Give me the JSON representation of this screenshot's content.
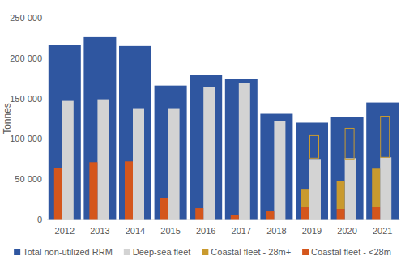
{
  "chart_data": {
    "type": "bar",
    "y_label": "Tonnes",
    "categories": [
      "2012",
      "2013",
      "2014",
      "2015",
      "2016",
      "2017",
      "2018",
      "2019",
      "2020",
      "2021"
    ],
    "series": [
      {
        "name": "Total non-utilized RRM",
        "color": "#2f56a0",
        "type": "total-bar",
        "values": [
          216000,
          226000,
          215000,
          166000,
          179000,
          174000,
          131000,
          120000,
          127000,
          145000
        ]
      },
      {
        "name": "Deep-sea fleet",
        "color": "#d3d3d3",
        "type": "overlay-bar",
        "values": [
          147000,
          149000,
          138000,
          138000,
          164000,
          169000,
          122000,
          75000,
          76000,
          77000
        ]
      },
      {
        "name": "Coastal fleet - 28m+",
        "color": "#c99a2e",
        "type": "stacked-bar",
        "values": [
          null,
          null,
          null,
          null,
          null,
          null,
          null,
          23000,
          35000,
          47000
        ]
      },
      {
        "name": "Coastal fleet - <28m",
        "color": "#d4561c",
        "type": "stacked-bar",
        "values": [
          64000,
          71000,
          72000,
          27000,
          14000,
          6000,
          10000,
          15000,
          13000,
          16000
        ]
      },
      {
        "color": "#c99a2e",
        "type": "outline-bar",
        "base": [
          null,
          null,
          null,
          null,
          null,
          null,
          null,
          76000,
          75000,
          77000
        ],
        "values": [
          null,
          null,
          null,
          null,
          null,
          null,
          null,
          104000,
          113000,
          128000
        ]
      }
    ],
    "stacked": true,
    "ylim": [
      0,
      250000
    ],
    "yticks": [
      0,
      {
        "value": 50000,
        "label": "50 000"
      },
      {
        "value": 100000,
        "label": "100 000"
      },
      {
        "value": 150000,
        "label": "150 000"
      },
      {
        "value": 200000,
        "label": "200 000"
      },
      {
        "value": 250000,
        "label": "250 000"
      }
    ],
    "grid": false,
    "legend": "bottom"
  }
}
